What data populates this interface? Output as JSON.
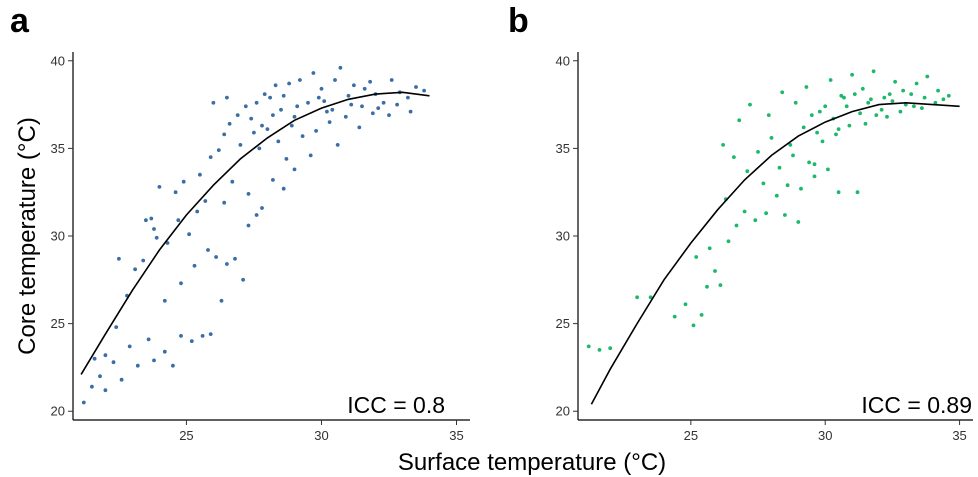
{
  "chart_data": [
    {
      "type": "scatter",
      "panel_label": "a",
      "xlabel": "Surface temperature (°C)",
      "ylabel": "Core temperature (°C)",
      "xlim": [
        20.8,
        35.5
      ],
      "ylim": [
        19.5,
        40.5
      ],
      "x_ticks": [
        25,
        30,
        35
      ],
      "y_ticks": [
        20,
        25,
        30,
        35,
        40
      ],
      "color": "#3A6EA5",
      "grid": false,
      "annotation": "ICC = 0.8",
      "fit_curve": [
        [
          21.1,
          22.1
        ],
        [
          22,
          24.4
        ],
        [
          23,
          26.9
        ],
        [
          24,
          29.2
        ],
        [
          25,
          31.2
        ],
        [
          26,
          32.9
        ],
        [
          27,
          34.4
        ],
        [
          28,
          35.6
        ],
        [
          29,
          36.6
        ],
        [
          30,
          37.3
        ],
        [
          31,
          37.8
        ],
        [
          32,
          38.1
        ],
        [
          33,
          38.2
        ],
        [
          34,
          38.0
        ]
      ],
      "series": [
        {
          "points": [
            [
              21.2,
              20.5
            ],
            [
              21.5,
              21.4
            ],
            [
              21.8,
              22.0
            ],
            [
              22.0,
              21.2
            ],
            [
              22.3,
              22.8
            ],
            [
              22.6,
              21.8
            ],
            [
              22.0,
              23.2
            ],
            [
              21.6,
              23.0
            ],
            [
              22.4,
              24.8
            ],
            [
              22.9,
              23.7
            ],
            [
              23.2,
              22.6
            ],
            [
              23.6,
              24.1
            ],
            [
              23.8,
              22.9
            ],
            [
              24.2,
              23.4
            ],
            [
              24.5,
              22.6
            ],
            [
              24.8,
              24.3
            ],
            [
              25.2,
              24.0
            ],
            [
              25.6,
              24.3
            ],
            [
              25.9,
              24.4
            ],
            [
              22.8,
              26.6
            ],
            [
              23.1,
              28.1
            ],
            [
              23.4,
              28.6
            ],
            [
              22.5,
              28.7
            ],
            [
              23.5,
              30.9
            ],
            [
              23.8,
              30.4
            ],
            [
              24.0,
              32.8
            ],
            [
              23.7,
              31.0
            ],
            [
              24.6,
              32.5
            ],
            [
              24.9,
              33.1
            ],
            [
              24.3,
              29.6
            ],
            [
              24.2,
              26.3
            ],
            [
              24.8,
              27.3
            ],
            [
              25.1,
              30.1
            ],
            [
              25.3,
              28.3
            ],
            [
              25.8,
              29.2
            ],
            [
              26.1,
              28.8
            ],
            [
              26.5,
              28.4
            ],
            [
              26.3,
              26.3
            ],
            [
              26.8,
              28.7
            ],
            [
              27.1,
              27.5
            ],
            [
              27.3,
              30.6
            ],
            [
              27.8,
              31.6
            ],
            [
              28.2,
              33.2
            ],
            [
              28.6,
              32.7
            ],
            [
              29.0,
              33.8
            ],
            [
              25.5,
              33.5
            ],
            [
              25.9,
              34.5
            ],
            [
              26.2,
              34.9
            ],
            [
              26.4,
              35.8
            ],
            [
              26.6,
              36.4
            ],
            [
              26.9,
              36.9
            ],
            [
              27.2,
              37.4
            ],
            [
              27.4,
              36.7
            ],
            [
              27.6,
              37.6
            ],
            [
              27.9,
              38.1
            ],
            [
              28.1,
              37.9
            ],
            [
              28.3,
              38.6
            ],
            [
              28.5,
              37.2
            ],
            [
              28.8,
              38.7
            ],
            [
              29.0,
              36.8
            ],
            [
              29.2,
              38.9
            ],
            [
              29.5,
              37.6
            ],
            [
              29.7,
              39.3
            ],
            [
              30.0,
              38.4
            ],
            [
              30.2,
              37.1
            ],
            [
              30.5,
              38.9
            ],
            [
              30.7,
              39.6
            ],
            [
              31.0,
              38.0
            ],
            [
              31.2,
              38.6
            ],
            [
              31.5,
              37.4
            ],
            [
              31.8,
              38.8
            ],
            [
              32.0,
              38.1
            ],
            [
              32.3,
              37.6
            ],
            [
              32.6,
              38.9
            ],
            [
              32.9,
              38.2
            ],
            [
              33.2,
              37.9
            ],
            [
              33.5,
              38.5
            ],
            [
              33.8,
              38.3
            ],
            [
              27.0,
              35.2
            ],
            [
              27.5,
              35.9
            ],
            [
              28.0,
              36.1
            ],
            [
              28.4,
              35.4
            ],
            [
              28.9,
              36.3
            ],
            [
              29.3,
              35.7
            ],
            [
              29.8,
              36.0
            ],
            [
              30.3,
              36.5
            ],
            [
              30.9,
              36.8
            ],
            [
              31.4,
              36.2
            ],
            [
              31.9,
              37.0
            ],
            [
              32.5,
              36.9
            ],
            [
              26.0,
              37.6
            ],
            [
              26.5,
              37.9
            ],
            [
              27.7,
              35.0
            ],
            [
              28.7,
              34.4
            ],
            [
              29.6,
              34.6
            ],
            [
              30.6,
              35.2
            ],
            [
              26.7,
              33.1
            ],
            [
              27.3,
              32.4
            ],
            [
              27.6,
              31.2
            ],
            [
              26.4,
              31.9
            ],
            [
              25.7,
              32.0
            ],
            [
              25.4,
              31.4
            ],
            [
              24.7,
              30.9
            ],
            [
              23.9,
              29.9
            ],
            [
              30.1,
              37.7
            ],
            [
              30.4,
              37.2
            ],
            [
              31.1,
              37.5
            ],
            [
              31.6,
              38.4
            ],
            [
              32.1,
              37.3
            ],
            [
              32.8,
              37.5
            ],
            [
              33.3,
              37.1
            ],
            [
              28.2,
              36.9
            ],
            [
              29.1,
              37.4
            ],
            [
              29.9,
              37.9
            ],
            [
              27.8,
              36.3
            ],
            [
              28.6,
              38.0
            ]
          ]
        }
      ]
    },
    {
      "type": "scatter",
      "panel_label": "b",
      "xlabel": "Surface temperature (°C)",
      "ylabel": "",
      "xlim": [
        20.8,
        35.5
      ],
      "ylim": [
        19.5,
        40.5
      ],
      "x_ticks": [
        25,
        30,
        35
      ],
      "y_ticks": [
        20,
        25,
        30,
        35,
        40
      ],
      "color": "#1DB86A",
      "grid": false,
      "annotation": "ICC = 0.89",
      "fit_curve": [
        [
          21.3,
          20.4
        ],
        [
          22,
          22.4
        ],
        [
          23,
          25.0
        ],
        [
          24,
          27.5
        ],
        [
          25,
          29.6
        ],
        [
          26,
          31.5
        ],
        [
          27,
          33.2
        ],
        [
          28,
          34.6
        ],
        [
          29,
          35.7
        ],
        [
          30,
          36.5
        ],
        [
          31,
          37.1
        ],
        [
          32,
          37.5
        ],
        [
          33,
          37.6
        ],
        [
          34,
          37.5
        ],
        [
          35,
          37.4
        ]
      ],
      "series": [
        {
          "points": [
            [
              21.2,
              23.7
            ],
            [
              21.6,
              23.5
            ],
            [
              22.0,
              23.6
            ],
            [
              23.0,
              26.5
            ],
            [
              23.5,
              26.5
            ],
            [
              24.4,
              25.4
            ],
            [
              24.8,
              26.1
            ],
            [
              25.1,
              24.9
            ],
            [
              25.4,
              25.5
            ],
            [
              25.6,
              27.1
            ],
            [
              25.9,
              28.0
            ],
            [
              26.1,
              27.2
            ],
            [
              25.2,
              28.8
            ],
            [
              25.7,
              29.3
            ],
            [
              26.4,
              29.7
            ],
            [
              26.7,
              30.6
            ],
            [
              27.0,
              31.4
            ],
            [
              27.4,
              30.9
            ],
            [
              27.8,
              31.3
            ],
            [
              28.2,
              32.3
            ],
            [
              28.6,
              32.9
            ],
            [
              29.1,
              32.7
            ],
            [
              29.6,
              34.1
            ],
            [
              30.1,
              33.8
            ],
            [
              30.5,
              32.5
            ],
            [
              31.2,
              32.5
            ],
            [
              26.2,
              35.2
            ],
            [
              26.8,
              36.6
            ],
            [
              27.2,
              37.5
            ],
            [
              27.9,
              36.9
            ],
            [
              28.4,
              38.2
            ],
            [
              28.9,
              37.6
            ],
            [
              29.3,
              38.5
            ],
            [
              29.8,
              37.1
            ],
            [
              30.2,
              38.9
            ],
            [
              30.6,
              38.0
            ],
            [
              31.0,
              39.2
            ],
            [
              31.4,
              38.4
            ],
            [
              31.8,
              39.4
            ],
            [
              32.2,
              37.9
            ],
            [
              32.6,
              38.8
            ],
            [
              33.0,
              37.5
            ],
            [
              33.4,
              38.7
            ],
            [
              33.8,
              39.1
            ],
            [
              34.2,
              38.3
            ],
            [
              34.6,
              38.0
            ],
            [
              27.5,
              34.8
            ],
            [
              28.0,
              35.6
            ],
            [
              28.7,
              35.2
            ],
            [
              29.2,
              36.2
            ],
            [
              29.7,
              35.9
            ],
            [
              30.3,
              36.7
            ],
            [
              30.8,
              37.4
            ],
            [
              31.3,
              37.0
            ],
            [
              31.7,
              37.8
            ],
            [
              32.1,
              37.2
            ],
            [
              32.5,
              37.7
            ],
            [
              32.9,
              38.3
            ],
            [
              33.3,
              37.4
            ],
            [
              33.7,
              37.9
            ],
            [
              34.1,
              37.6
            ],
            [
              28.3,
              33.9
            ],
            [
              28.8,
              34.6
            ],
            [
              29.4,
              34.2
            ],
            [
              29.9,
              35.4
            ],
            [
              30.4,
              35.8
            ],
            [
              30.9,
              36.3
            ],
            [
              31.5,
              36.4
            ],
            [
              32.3,
              36.8
            ],
            [
              27.7,
              33.0
            ],
            [
              28.5,
              31.2
            ],
            [
              29.0,
              30.8
            ],
            [
              27.1,
              33.7
            ],
            [
              26.6,
              34.5
            ],
            [
              26.3,
              32.1
            ],
            [
              29.5,
              36.9
            ],
            [
              30.0,
              37.4
            ],
            [
              30.7,
              37.9
            ],
            [
              31.1,
              38.1
            ],
            [
              31.6,
              37.6
            ],
            [
              32.4,
              38.1
            ],
            [
              32.8,
              37.1
            ],
            [
              33.2,
              38.1
            ],
            [
              33.6,
              37.3
            ],
            [
              34.4,
              37.8
            ],
            [
              31.9,
              36.9
            ],
            [
              30.5,
              36.1
            ],
            [
              29.6,
              33.4
            ]
          ]
        }
      ]
    }
  ]
}
